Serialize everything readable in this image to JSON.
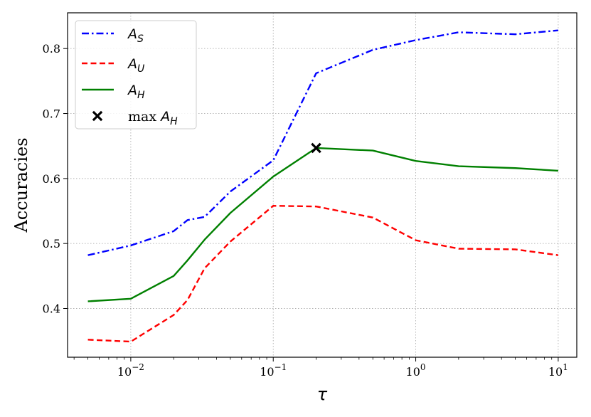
{
  "chart_data": {
    "type": "line",
    "xlabel": "τ",
    "ylabel": "Accuracies",
    "xscale": "log",
    "xlim": [
      0.0036,
      13.5
    ],
    "ylim": [
      0.325,
      0.855
    ],
    "grid": true,
    "legend_position": "top-left",
    "x_ticks": [
      {
        "value": 0.01,
        "base": "10",
        "exp": "−2"
      },
      {
        "value": 0.1,
        "base": "10",
        "exp": "−1"
      },
      {
        "value": 1,
        "base": "10",
        "exp": "0"
      },
      {
        "value": 10,
        "base": "10",
        "exp": "1"
      }
    ],
    "y_ticks": [
      {
        "value": 0.4,
        "label": "0.4"
      },
      {
        "value": 0.5,
        "label": "0.5"
      },
      {
        "value": 0.6,
        "label": "0.6"
      },
      {
        "value": 0.7,
        "label": "0.7"
      },
      {
        "value": 0.8,
        "label": "0.8"
      }
    ],
    "series": [
      {
        "name": "A_S",
        "sym": "A",
        "sub": "S",
        "color": "#0000ff",
        "style": "dashdot",
        "x": [
          0.005,
          0.01,
          0.02,
          0.025,
          0.033,
          0.05,
          0.1,
          0.2,
          0.5,
          1,
          2,
          5,
          10
        ],
        "y": [
          0.482,
          0.497,
          0.519,
          0.536,
          0.541,
          0.58,
          0.628,
          0.762,
          0.798,
          0.813,
          0.825,
          0.822,
          0.828
        ]
      },
      {
        "name": "A_U",
        "sym": "A",
        "sub": "U",
        "color": "#ff0000",
        "style": "dashed",
        "x": [
          0.005,
          0.01,
          0.02,
          0.025,
          0.033,
          0.05,
          0.1,
          0.2,
          0.5,
          1,
          2,
          5,
          10
        ],
        "y": [
          0.352,
          0.349,
          0.39,
          0.413,
          0.462,
          0.503,
          0.558,
          0.557,
          0.54,
          0.505,
          0.492,
          0.491,
          0.482
        ]
      },
      {
        "name": "A_H",
        "sym": "A",
        "sub": "H",
        "color": "#008000",
        "style": "solid",
        "x": [
          0.005,
          0.01,
          0.02,
          0.025,
          0.033,
          0.05,
          0.1,
          0.2,
          0.5,
          1,
          2,
          5,
          10
        ],
        "y": [
          0.411,
          0.415,
          0.45,
          0.474,
          0.506,
          0.547,
          0.603,
          0.647,
          0.643,
          0.627,
          0.619,
          0.616,
          0.612
        ]
      }
    ],
    "markers": [
      {
        "name": "max A_H",
        "prefix": "max ",
        "sym": "A",
        "sub": "H",
        "x": 0.2,
        "y": 0.647,
        "color": "#000000",
        "marker": "x"
      }
    ]
  }
}
